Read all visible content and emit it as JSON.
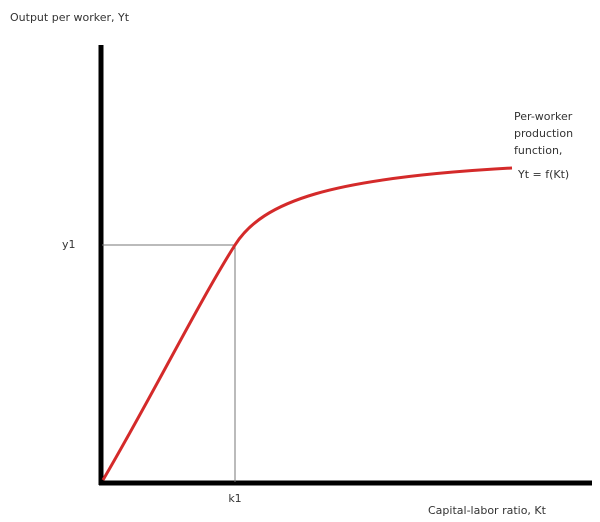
{
  "axes": {
    "y_label": "Output per worker, Yt",
    "x_label": "Capital-labor ratio, Kt"
  },
  "points": {
    "y_mark": "y1",
    "x_mark": "k1"
  },
  "curve_label": {
    "lines": [
      "Per-worker",
      "production",
      "function,"
    ],
    "equation": "Yt = f(Kt)"
  }
}
